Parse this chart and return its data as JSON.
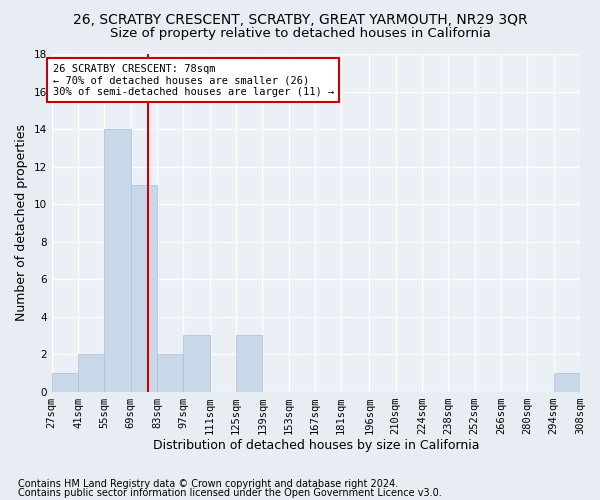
{
  "title": "26, SCRATBY CRESCENT, SCRATBY, GREAT YARMOUTH, NR29 3QR",
  "subtitle": "Size of property relative to detached houses in California",
  "xlabel": "Distribution of detached houses by size in California",
  "ylabel": "Number of detached properties",
  "footnote1": "Contains HM Land Registry data © Crown copyright and database right 2024.",
  "footnote2": "Contains public sector information licensed under the Open Government Licence v3.0.",
  "bins": [
    27,
    41,
    55,
    69,
    83,
    97,
    111,
    125,
    139,
    153,
    167,
    181,
    196,
    210,
    224,
    238,
    252,
    266,
    280,
    294,
    308
  ],
  "bin_labels": [
    "27sqm",
    "41sqm",
    "55sqm",
    "69sqm",
    "83sqm",
    "97sqm",
    "111sqm",
    "125sqm",
    "139sqm",
    "153sqm",
    "167sqm",
    "181sqm",
    "196sqm",
    "210sqm",
    "224sqm",
    "238sqm",
    "252sqm",
    "266sqm",
    "280sqm",
    "294sqm",
    "308sqm"
  ],
  "counts": [
    1,
    2,
    14,
    11,
    2,
    3,
    0,
    3,
    0,
    0,
    0,
    0,
    0,
    0,
    0,
    0,
    0,
    0,
    0,
    1
  ],
  "bar_color": "#c8d8e8",
  "bar_edgecolor": "#a8c0d8",
  "red_line_x": 78,
  "annotation_line1": "26 SCRATBY CRESCENT: 78sqm",
  "annotation_line2": "← 70% of detached houses are smaller (26)",
  "annotation_line3": "30% of semi-detached houses are larger (11) →",
  "annotation_box_color": "#ffffff",
  "annotation_box_edgecolor": "#cc0000",
  "ylim": [
    0,
    18
  ],
  "yticks": [
    0,
    2,
    4,
    6,
    8,
    10,
    12,
    14,
    16,
    18
  ],
  "bg_color": "#e8edf4",
  "plot_bg_color": "#eaf0f6",
  "grid_color": "#ffffff",
  "title_fontsize": 10,
  "subtitle_fontsize": 9.5,
  "ylabel_fontsize": 9,
  "xlabel_fontsize": 9,
  "tick_fontsize": 7.5,
  "annotation_fontsize": 7.5,
  "footnote_fontsize": 7
}
